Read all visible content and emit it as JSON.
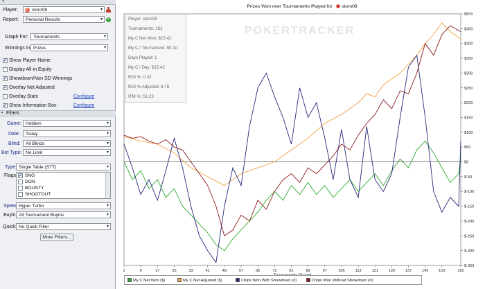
{
  "left_panel": {
    "top_strip": "«",
    "player": {
      "label": "Player:",
      "value": "storo08"
    },
    "report": {
      "label": "Report:",
      "value": "Personal Results"
    },
    "graph_for": {
      "label": "Graph For:",
      "value": "Tournaments"
    },
    "winnings_in": {
      "label": "Winnings in:",
      "value": "Prizes"
    },
    "options": [
      {
        "label": "Show Player Name",
        "checked": true
      },
      {
        "label": "Display All-in Equity",
        "checked": false
      },
      {
        "label": "Showdown/Non SD Winnings",
        "checked": true
      },
      {
        "label": "Overlay Net Adjusted",
        "checked": true
      },
      {
        "label": "Overlay Stats",
        "checked": false,
        "link": "Configure"
      },
      {
        "label": "Show Information Box",
        "checked": true,
        "link": "Configure"
      }
    ],
    "filters_header": "Filters",
    "filters": {
      "game": {
        "label": "Game:",
        "value": "Holdem"
      },
      "date": {
        "label": "Date:",
        "value": "Today"
      },
      "blind": {
        "label": "Blind:",
        "value": "All Blinds"
      },
      "bet_type": {
        "label": "Bet Type:",
        "value": "No Limit"
      },
      "type": {
        "label": "Type:",
        "value": "Single Table (STT)"
      },
      "flags": {
        "label": "Flags:",
        "items": [
          {
            "label": "SNG",
            "checked": true
          },
          {
            "label": "DON",
            "checked": false
          },
          {
            "label": "BOUNTY",
            "checked": false
          },
          {
            "label": "SHOOTOUT",
            "checked": false
          }
        ]
      },
      "speed": {
        "label": "Speed:",
        "value": "Hyper Turbo"
      },
      "buyin": {
        "label": "Buyin:",
        "value": "All Tournament Buyins"
      },
      "quick": {
        "label": "Quick:",
        "value": "No Quick Filter"
      }
    },
    "more_filters_button": "More Filters..."
  },
  "chart_panel": {
    "title": "Prizes Won over Tournaments Played for",
    "title_player": "storo08",
    "watermark": "POKERTRACKER",
    "info_box": [
      "Player: storo08",
      "Tournaments: 162",
      "My C Net Won: $15.42",
      "My C / Tournament: $0.10",
      "Days Played: 1",
      "My C / Day: $15.42",
      "ROI %: 0.32",
      "ROI % Adjusted: 8.78",
      "ITM %: 51.23"
    ]
  },
  "chart_data": {
    "type": "line",
    "title": "Prizes Won over Tournaments Played for storo08",
    "xlabel": "Tournaments Played",
    "ylabel": "",
    "x_ticks": [
      1,
      9,
      17,
      25,
      33,
      41,
      49,
      57,
      65,
      73,
      81,
      89,
      97,
      105,
      113,
      121,
      129,
      137,
      145,
      153,
      162
    ],
    "y_ticks": [
      "$500",
      "$450",
      "$400",
      "$350",
      "$300",
      "$250",
      "$200",
      "$150",
      "$100",
      "$50",
      "$0",
      "$-50",
      "$-100",
      "$-150",
      "$-200",
      "$-250",
      "$-300",
      "$-350"
    ],
    "ylim": [
      -350,
      500
    ],
    "xlim": [
      1,
      162
    ],
    "grid": false,
    "legend_position": "bottom",
    "series": [
      {
        "name": "My C Net Won ($)",
        "color": "#2ea62e",
        "points": [
          [
            1,
            0
          ],
          [
            5,
            -60
          ],
          [
            9,
            -30
          ],
          [
            13,
            -90
          ],
          [
            17,
            -60
          ],
          [
            21,
            -120
          ],
          [
            25,
            -90
          ],
          [
            29,
            -150
          ],
          [
            33,
            -180
          ],
          [
            37,
            -210
          ],
          [
            41,
            -240
          ],
          [
            45,
            -280
          ],
          [
            49,
            -300
          ],
          [
            53,
            -260
          ],
          [
            57,
            -230
          ],
          [
            61,
            -200
          ],
          [
            65,
            -170
          ],
          [
            69,
            -130
          ],
          [
            73,
            -100
          ],
          [
            77,
            -130
          ],
          [
            81,
            -80
          ],
          [
            85,
            -110
          ],
          [
            89,
            -70
          ],
          [
            93,
            -110
          ],
          [
            97,
            -80
          ],
          [
            101,
            -120
          ],
          [
            105,
            -90
          ],
          [
            109,
            -60
          ],
          [
            113,
            -100
          ],
          [
            117,
            -70
          ],
          [
            121,
            -40
          ],
          [
            125,
            -80
          ],
          [
            129,
            -30
          ],
          [
            133,
            10
          ],
          [
            137,
            -20
          ],
          [
            141,
            40
          ],
          [
            145,
            70
          ],
          [
            149,
            30
          ],
          [
            153,
            -20
          ],
          [
            157,
            -70
          ],
          [
            161,
            -40
          ],
          [
            162,
            15
          ]
        ]
      },
      {
        "name": "My C Net Adjusted ($)",
        "color": "#f0a040",
        "points": [
          [
            1,
            85
          ],
          [
            9,
            70
          ],
          [
            17,
            60
          ],
          [
            25,
            30
          ],
          [
            33,
            -20
          ],
          [
            41,
            -50
          ],
          [
            49,
            -80
          ],
          [
            57,
            -40
          ],
          [
            65,
            -20
          ],
          [
            73,
            0
          ],
          [
            81,
            40
          ],
          [
            89,
            80
          ],
          [
            97,
            130
          ],
          [
            105,
            160
          ],
          [
            113,
            200
          ],
          [
            117,
            230
          ],
          [
            121,
            220
          ],
          [
            125,
            260
          ],
          [
            129,
            280
          ],
          [
            133,
            300
          ],
          [
            137,
            330
          ],
          [
            141,
            360
          ],
          [
            145,
            400
          ],
          [
            149,
            430
          ],
          [
            153,
            470
          ],
          [
            157,
            440
          ],
          [
            162,
            415
          ]
        ]
      },
      {
        "name": "Chips Won With Showdown (#)",
        "color": "#25257a",
        "points": [
          [
            1,
            60
          ],
          [
            5,
            -20
          ],
          [
            9,
            -110
          ],
          [
            13,
            -60
          ],
          [
            17,
            -130
          ],
          [
            21,
            -30
          ],
          [
            25,
            80
          ],
          [
            29,
            -20
          ],
          [
            33,
            -150
          ],
          [
            37,
            -250
          ],
          [
            41,
            -300
          ],
          [
            45,
            -340
          ],
          [
            49,
            -150
          ],
          [
            53,
            -20
          ],
          [
            57,
            -80
          ],
          [
            61,
            120
          ],
          [
            65,
            250
          ],
          [
            69,
            300
          ],
          [
            73,
            220
          ],
          [
            77,
            150
          ],
          [
            81,
            60
          ],
          [
            85,
            250
          ],
          [
            89,
            150
          ],
          [
            93,
            200
          ],
          [
            97,
            80
          ],
          [
            101,
            -60
          ],
          [
            105,
            110
          ],
          [
            109,
            -60
          ],
          [
            113,
            -120
          ],
          [
            117,
            120
          ],
          [
            121,
            -60
          ],
          [
            125,
            -100
          ],
          [
            129,
            -40
          ],
          [
            133,
            150
          ],
          [
            137,
            320
          ],
          [
            141,
            360
          ],
          [
            145,
            150
          ],
          [
            149,
            -100
          ],
          [
            153,
            -170
          ],
          [
            157,
            -120
          ],
          [
            161,
            -150
          ],
          [
            162,
            70
          ]
        ]
      },
      {
        "name": "Chips Won Without Showdown (#)",
        "color": "#8b1a1a",
        "points": [
          [
            1,
            90
          ],
          [
            5,
            80
          ],
          [
            9,
            85
          ],
          [
            13,
            70
          ],
          [
            17,
            60
          ],
          [
            21,
            75
          ],
          [
            25,
            50
          ],
          [
            29,
            40
          ],
          [
            33,
            0
          ],
          [
            37,
            -40
          ],
          [
            41,
            -80
          ],
          [
            45,
            -150
          ],
          [
            49,
            -250
          ],
          [
            53,
            -230
          ],
          [
            57,
            -180
          ],
          [
            61,
            -200
          ],
          [
            65,
            -130
          ],
          [
            69,
            -160
          ],
          [
            73,
            -100
          ],
          [
            77,
            -60
          ],
          [
            81,
            -40
          ],
          [
            85,
            -70
          ],
          [
            89,
            -20
          ],
          [
            93,
            -40
          ],
          [
            97,
            -10
          ],
          [
            101,
            20
          ],
          [
            105,
            60
          ],
          [
            109,
            40
          ],
          [
            113,
            90
          ],
          [
            117,
            130
          ],
          [
            121,
            160
          ],
          [
            125,
            210
          ],
          [
            129,
            180
          ],
          [
            133,
            240
          ],
          [
            137,
            230
          ],
          [
            141,
            300
          ],
          [
            145,
            400
          ],
          [
            149,
            360
          ],
          [
            153,
            430
          ],
          [
            157,
            460
          ],
          [
            162,
            440
          ]
        ]
      }
    ]
  }
}
